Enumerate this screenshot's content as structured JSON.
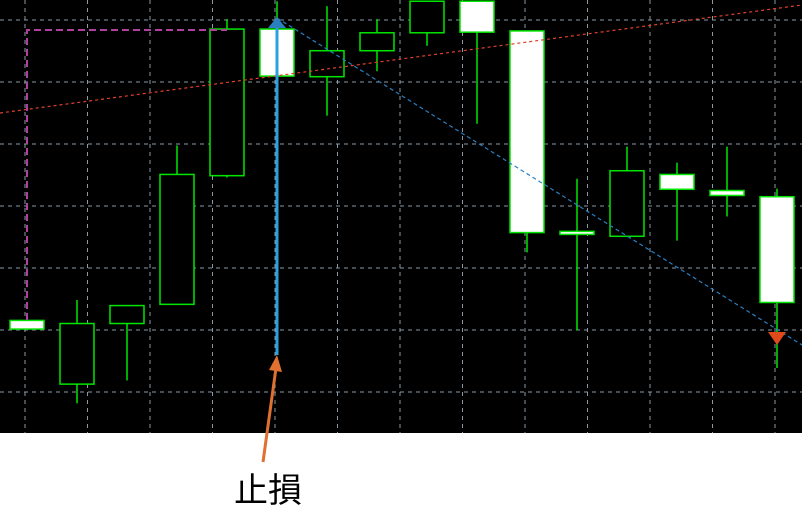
{
  "chart_data": {
    "type": "candlestick",
    "annotation": "止損",
    "categories": [
      null,
      null,
      null,
      null,
      null,
      null,
      null,
      null,
      null,
      null,
      null,
      null,
      null,
      null,
      null,
      null
    ],
    "open": [
      1.82,
      0.79,
      1.77,
      2.08,
      4.16,
      6.53,
      5.76,
      6.18,
      6.47,
      6.98,
      6.5,
      3.26,
      3.18,
      4.18,
      3.92,
      3.82
    ],
    "high": [
      1.82,
      2.15,
      2.06,
      4.65,
      6.69,
      6.98,
      6.9,
      6.69,
      6.98,
      6.98,
      6.5,
      4.11,
      4.63,
      4.37,
      4.63,
      3.95
    ],
    "low": [
      1.68,
      0.48,
      0.85,
      2.08,
      4.13,
      5.77,
      5.13,
      5.85,
      6.26,
      5.0,
      2.92,
      1.66,
      3.18,
      3.11,
      3.5,
      1.05
    ],
    "close": [
      1.68,
      1.77,
      2.06,
      4.18,
      6.53,
      5.77,
      6.18,
      6.47,
      6.98,
      6.48,
      3.24,
      3.21,
      4.24,
      3.94,
      3.84,
      2.11
    ],
    "color": "#00e600",
    "up_fill": "#000000",
    "down_fill": "#ffffff",
    "ylim": [
      0,
      7
    ]
  }
}
